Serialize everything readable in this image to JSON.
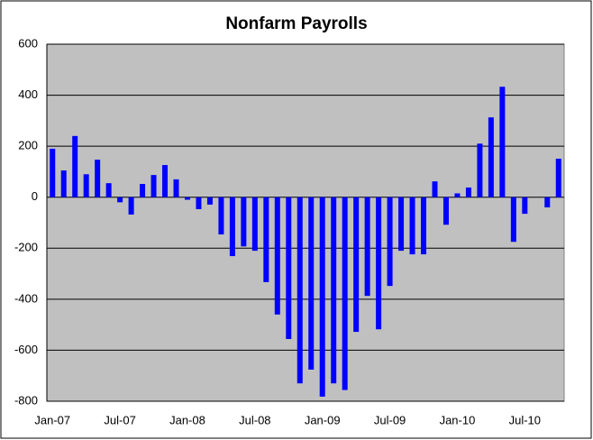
{
  "chart_data": {
    "type": "bar",
    "title": "Nonfarm Payrolls",
    "categories": [
      "Jan-07",
      null,
      null,
      null,
      null,
      null,
      "Jul-07",
      null,
      null,
      null,
      null,
      null,
      "Jan-08",
      null,
      null,
      null,
      null,
      null,
      "Jul-08",
      null,
      null,
      null,
      null,
      null,
      "Jan-09",
      null,
      null,
      null,
      null,
      null,
      "Jul-09",
      null,
      null,
      null,
      null,
      null,
      "Jan-10",
      null,
      null,
      null,
      null,
      null,
      "Jul-10",
      null,
      null,
      null
    ],
    "values": [
      190,
      105,
      240,
      90,
      147,
      55,
      -20,
      -68,
      52,
      87,
      126,
      70,
      -10,
      -47,
      -29,
      -146,
      -231,
      -193,
      -210,
      -333,
      -460,
      -556,
      -730,
      -676,
      -782,
      -730,
      -756,
      -528,
      -387,
      -518,
      -348,
      -210,
      -224,
      -224,
      62,
      -108,
      15,
      38,
      210,
      313,
      433,
      -175,
      -65,
      0,
      -40,
      151
    ],
    "color": "#0000ff",
    "ylim": [
      -800,
      600
    ],
    "yticks": [
      -800,
      -600,
      -400,
      -200,
      0,
      200,
      400,
      600
    ],
    "grid": true
  }
}
